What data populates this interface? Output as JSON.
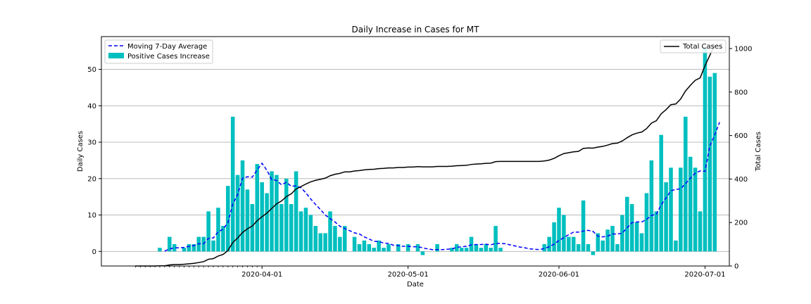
{
  "chart_data": {
    "type": "bar",
    "title": "Daily Increase in Cases for MT",
    "xlabel": "Date",
    "ylabel": "Daily Cases",
    "y2label": "Total Cases",
    "start_date": "2020-03-06",
    "x_ticks": [
      "2020-04-01",
      "2020-05-01",
      "2020-06-01",
      "2020-07-01"
    ],
    "xlim": [
      "2020-02-28",
      "2020-07-06"
    ],
    "ylim": [
      -4,
      59
    ],
    "y_ticks": [
      0,
      10,
      20,
      30,
      40,
      50
    ],
    "y2lim": [
      0,
      1055
    ],
    "y2_ticks": [
      0,
      200,
      400,
      600,
      800,
      1000
    ],
    "grid": "horizontal",
    "series": [
      {
        "name": "Positive Cases Increase",
        "kind": "bar",
        "color": "#00bfbf",
        "values": [
          0,
          0,
          0,
          0,
          0,
          1,
          0,
          4,
          2,
          0,
          1,
          2,
          2,
          4,
          4,
          11,
          3,
          12,
          7,
          18,
          37,
          21,
          25,
          17,
          13,
          24,
          19,
          16,
          22,
          21,
          13,
          20,
          13,
          22,
          11,
          12,
          10,
          7,
          5,
          5,
          11,
          7,
          4,
          7,
          0,
          4,
          2,
          3,
          2,
          1,
          3,
          1,
          2,
          0,
          2,
          0,
          2,
          0,
          2,
          -1,
          0,
          0,
          2,
          0,
          0,
          1,
          2,
          1,
          1,
          4,
          2,
          1,
          2,
          1,
          7,
          1,
          0,
          0,
          0,
          0,
          0,
          0,
          0,
          0,
          2,
          4,
          8,
          12,
          10,
          4,
          4,
          2,
          14,
          2,
          -1,
          5,
          3,
          6,
          7,
          2,
          10,
          15,
          13,
          8,
          5,
          16,
          25,
          11,
          32,
          19,
          23,
          3,
          23,
          37,
          26,
          23,
          11,
          56,
          48,
          49
        ]
      },
      {
        "name": "Moving 7-Day Average",
        "kind": "line",
        "color": "#0000ff",
        "values": [
          null,
          null,
          null,
          null,
          null,
          null,
          0.1,
          0.7,
          1.0,
          1.0,
          1.1,
          1.4,
          1.6,
          2.1,
          2.1,
          3.6,
          3.7,
          5.4,
          6.1,
          7.9,
          13.1,
          15.6,
          20.1,
          20.5,
          20.4,
          22.4,
          24.2,
          22.3,
          19.7,
          19.5,
          18.3,
          19.0,
          17.9,
          18.0,
          17.5,
          16.1,
          14.4,
          12.9,
          11.5,
          10.0,
          9.0,
          8.1,
          6.9,
          6.3,
          5.7,
          5.1,
          4.8,
          4.0,
          3.4,
          2.8,
          2.7,
          2.3,
          2.2,
          1.7,
          1.6,
          1.4,
          1.4,
          1.3,
          1.3,
          1.0,
          0.7,
          0.5,
          0.5,
          0.5,
          0.6,
          0.7,
          1.1,
          1.3,
          1.4,
          1.8,
          1.9,
          1.9,
          2.0,
          1.8,
          2.2,
          2.2,
          2.1,
          1.8,
          1.5,
          1.2,
          1.0,
          0.7,
          0.6,
          0.5,
          0.8,
          1.3,
          2.0,
          3.0,
          3.8,
          4.6,
          5.3,
          5.3,
          5.6,
          5.8,
          5.5,
          4.2,
          4.0,
          4.2,
          4.8,
          4.8,
          5.0,
          6.5,
          7.9,
          8.1,
          8.1,
          8.8,
          9.9,
          10.2,
          12.8,
          14.7,
          16.7,
          17.0,
          17.2,
          18.6,
          20.1,
          21.5,
          22.1,
          22.0,
          29.0,
          32.0,
          35.5
        ]
      },
      {
        "name": "Total Cases",
        "kind": "line",
        "axis": "right",
        "color": "#000000",
        "values": [
          0,
          0,
          0,
          0,
          0,
          1,
          1,
          5,
          7,
          7,
          8,
          10,
          12,
          16,
          20,
          31,
          34,
          46,
          53,
          71,
          108,
          129,
          154,
          171,
          184,
          208,
          227,
          243,
          265,
          286,
          299,
          319,
          332,
          354,
          365,
          377,
          387,
          394,
          399,
          404,
          415,
          422,
          426,
          433,
          433,
          437,
          439,
          442,
          444,
          445,
          448,
          449,
          451,
          451,
          453,
          453,
          455,
          455,
          457,
          456,
          456,
          456,
          458,
          458,
          458,
          459,
          461,
          462,
          463,
          467,
          469,
          470,
          472,
          473,
          480,
          481,
          481,
          481,
          481,
          481,
          481,
          481,
          481,
          481,
          483,
          487,
          495,
          507,
          517,
          521,
          525,
          527,
          541,
          543,
          542,
          547,
          550,
          556,
          563,
          565,
          575,
          590,
          603,
          611,
          616,
          632,
          657,
          668,
          700,
          719,
          742,
          745,
          768,
          805,
          831,
          854,
          865,
          921,
          969,
          1018
        ]
      }
    ],
    "legend_left": {
      "placement": "upper-left",
      "entries": [
        "Moving 7-Day Average",
        "Positive Cases Increase"
      ]
    },
    "legend_right": {
      "placement": "upper-right",
      "entries": [
        "Total Cases"
      ]
    }
  }
}
